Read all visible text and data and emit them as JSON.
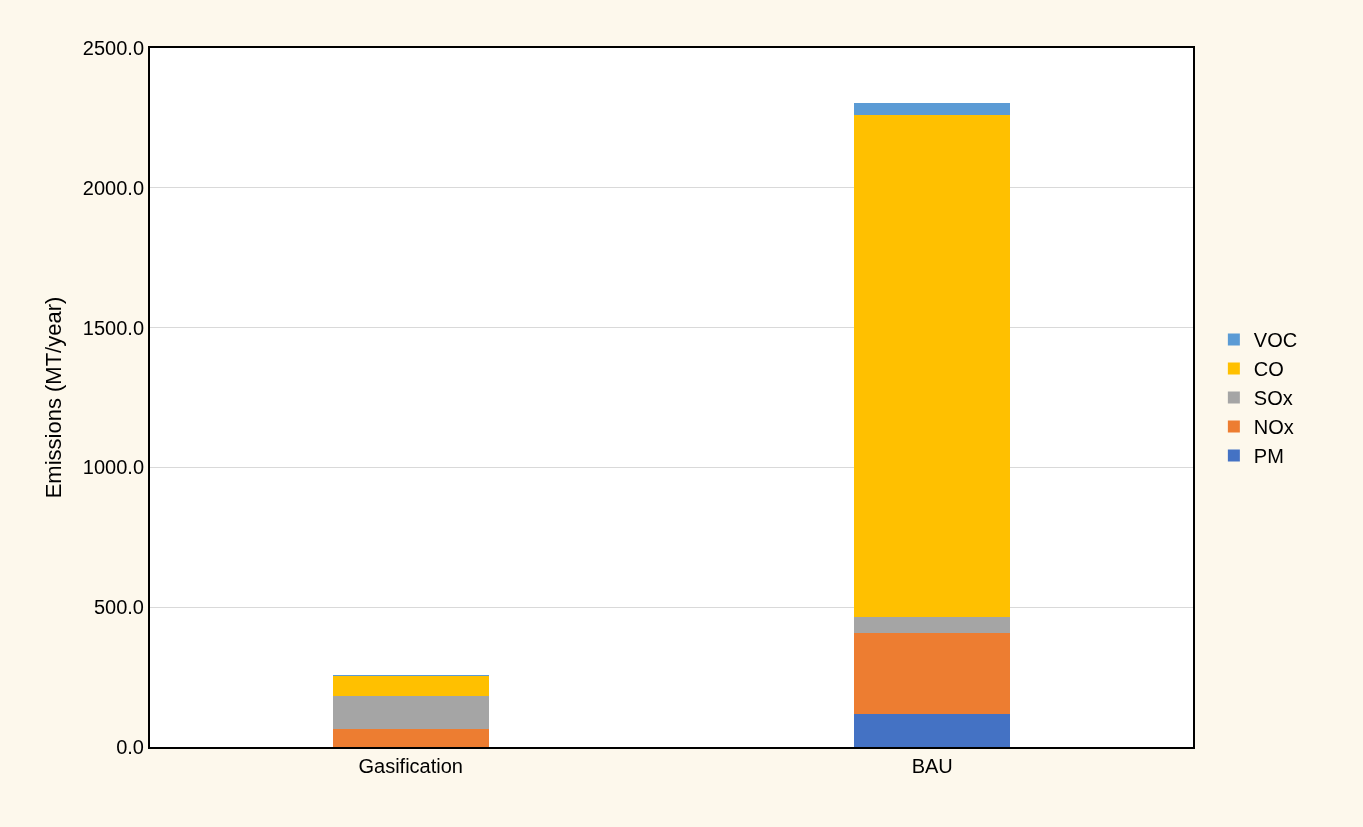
{
  "chart_data": {
    "type": "bar",
    "stacked": true,
    "ylabel": "Emissions (MT/year)",
    "categories": [
      "Gasification",
      "BAU"
    ],
    "series": [
      {
        "name": "PM",
        "color": "#4472c4",
        "values": [
          null,
          117
        ]
      },
      {
        "name": "NOx",
        "color": "#ed7d31",
        "values": [
          65,
          292
        ]
      },
      {
        "name": "SOx",
        "color": "#a5a5a5",
        "values": [
          118,
          57
        ]
      },
      {
        "name": "CO",
        "color": "#ffc000",
        "values": [
          71,
          1796
        ]
      },
      {
        "name": "VOC",
        "color": "#5b9bd5",
        "values": [
          2,
          40
        ]
      }
    ],
    "ylim": [
      0,
      2500
    ],
    "yticks": [
      {
        "value": 0,
        "label": "0.0"
      },
      {
        "value": 500,
        "label": "500.0"
      },
      {
        "value": 1000,
        "label": "1000.0"
      },
      {
        "value": 1500,
        "label": "1500.0"
      },
      {
        "value": 2000,
        "label": "2000.0"
      },
      {
        "value": 2500,
        "label": "2500.0"
      }
    ],
    "grid": "y",
    "legend": "right"
  }
}
